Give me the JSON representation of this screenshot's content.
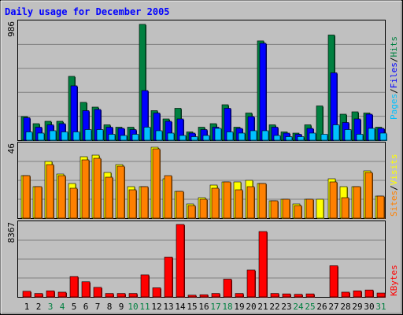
{
  "chart_data": [
    {
      "type": "bar",
      "title": "Daily usage for December 2005",
      "ymax_label": "986",
      "categories": [
        "1",
        "2",
        "3",
        "4",
        "5",
        "6",
        "7",
        "8",
        "9",
        "10",
        "11",
        "12",
        "13",
        "14",
        "15",
        "16",
        "17",
        "18",
        "19",
        "20",
        "21",
        "22",
        "23",
        "24",
        "25",
        "26",
        "27",
        "28",
        "29",
        "30",
        "31"
      ],
      "weekend_days": [
        "3",
        "4",
        "10",
        "11",
        "17",
        "18",
        "24",
        "25",
        "31"
      ],
      "ylim": [
        0,
        986
      ],
      "series": [
        {
          "name": "Hits",
          "color": "#008040",
          "values": [
            200,
            140,
            160,
            160,
            540,
            320,
            280,
            130,
            110,
            110,
            980,
            250,
            180,
            270,
            70,
            110,
            140,
            300,
            110,
            230,
            840,
            130,
            70,
            60,
            130,
            290,
            890,
            220,
            240,
            230,
            110
          ]
        },
        {
          "name": "Files",
          "color": "#0000ff",
          "values": [
            190,
            110,
            130,
            140,
            460,
            250,
            260,
            110,
            100,
            90,
            420,
            230,
            160,
            180,
            60,
            90,
            110,
            270,
            100,
            200,
            820,
            110,
            60,
            50,
            100,
            0,
            570,
            150,
            180,
            220,
            100
          ]
        },
        {
          "name": "Pages",
          "color": "#00c0ff",
          "values": [
            70,
            60,
            80,
            70,
            70,
            90,
            90,
            50,
            40,
            50,
            110,
            80,
            60,
            40,
            30,
            40,
            100,
            70,
            60,
            80,
            80,
            40,
            30,
            30,
            60,
            50,
            130,
            90,
            50,
            100,
            60
          ]
        }
      ],
      "legend_order": [
        "Pages",
        "Files",
        "Hits"
      ]
    },
    {
      "type": "bar",
      "ymax_label": "46",
      "categories": [
        "1",
        "2",
        "3",
        "4",
        "5",
        "6",
        "7",
        "8",
        "9",
        "10",
        "11",
        "12",
        "13",
        "14",
        "15",
        "16",
        "17",
        "18",
        "19",
        "20",
        "21",
        "22",
        "23",
        "24",
        "25",
        "26",
        "27",
        "28",
        "29",
        "30",
        "31"
      ],
      "ylim": [
        0,
        46
      ],
      "series": [
        {
          "name": "Visits",
          "color": "#ffff00",
          "values": [
            27,
            20,
            36,
            28,
            22,
            39,
            40,
            29,
            34,
            20,
            20,
            45,
            25,
            17,
            9,
            13,
            21,
            23,
            23,
            24,
            22,
            11,
            12,
            9,
            12,
            12,
            25,
            20,
            20,
            30,
            14
          ]
        },
        {
          "name": "Sites",
          "color": "#ff8000",
          "values": [
            27,
            20,
            34,
            27,
            19,
            37,
            38,
            26,
            33,
            18,
            20,
            44,
            27,
            17,
            8,
            12,
            19,
            23,
            18,
            20,
            22,
            11,
            12,
            8,
            12,
            0,
            23,
            13,
            20,
            29,
            14
          ]
        }
      ],
      "legend_order": [
        "Sites",
        "Visits"
      ]
    },
    {
      "type": "bar",
      "ymax_label": "8367",
      "categories": [
        "1",
        "2",
        "3",
        "4",
        "5",
        "6",
        "7",
        "8",
        "9",
        "10",
        "11",
        "12",
        "13",
        "14",
        "15",
        "16",
        "17",
        "18",
        "19",
        "20",
        "21",
        "22",
        "23",
        "24",
        "25",
        "26",
        "27",
        "28",
        "29",
        "30",
        "31"
      ],
      "ylim": [
        0,
        8367
      ],
      "series": [
        {
          "name": "KBytes",
          "color": "#ff0000",
          "values": [
            650,
            400,
            700,
            550,
            2350,
            1750,
            1100,
            400,
            400,
            400,
            2550,
            1050,
            4600,
            8367,
            200,
            250,
            400,
            2050,
            400,
            3100,
            7550,
            400,
            350,
            300,
            350,
            0,
            3600,
            550,
            700,
            800,
            450
          ]
        }
      ],
      "legend_order": [
        "KBytes"
      ]
    }
  ]
}
